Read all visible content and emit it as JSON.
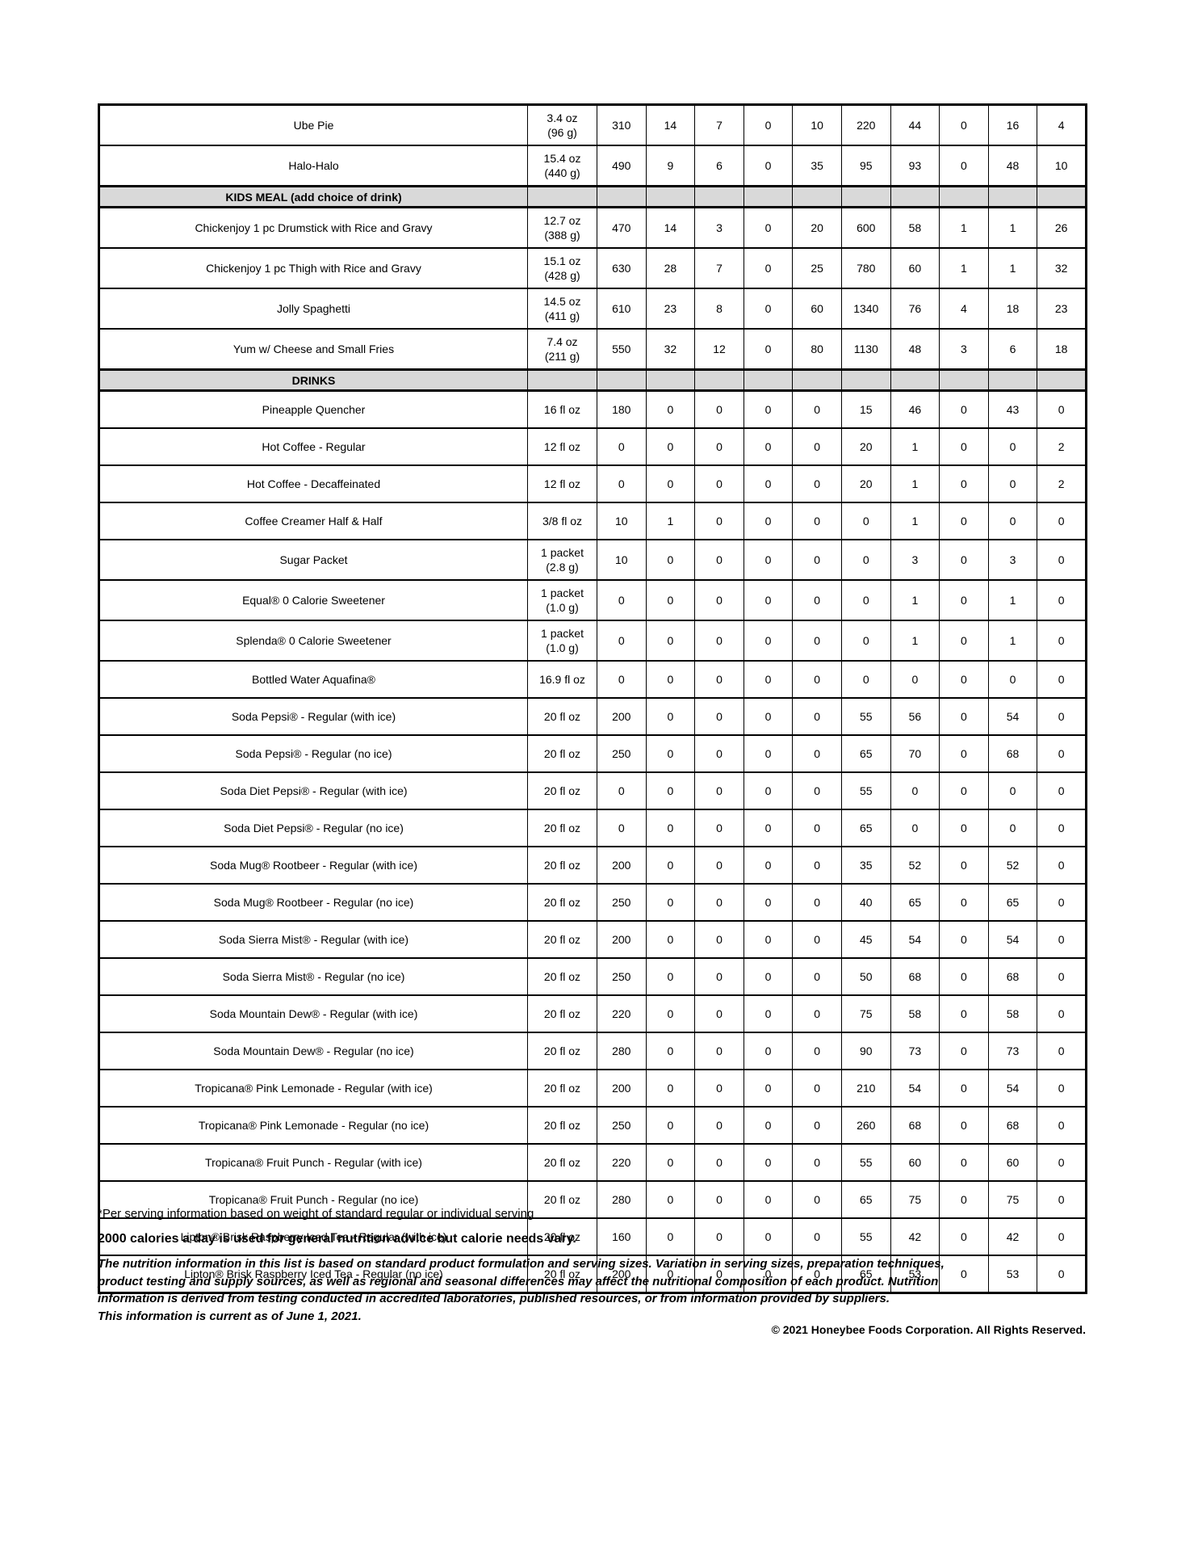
{
  "colors": {
    "section_bg": "#d9d9d9",
    "border": "#000000",
    "text": "#000000",
    "page_bg": "#ffffff"
  },
  "table": {
    "rows": [
      {
        "type": "item",
        "name": "Ube Pie",
        "serving": [
          "3.4 oz",
          "(96 g)"
        ],
        "values": [
          310,
          14,
          7,
          0,
          10,
          220,
          44,
          0,
          16,
          4
        ]
      },
      {
        "type": "item",
        "name": "Halo-Halo",
        "serving": [
          "15.4 oz",
          "(440 g)"
        ],
        "values": [
          490,
          9,
          6,
          0,
          35,
          95,
          93,
          0,
          48,
          10
        ]
      },
      {
        "type": "section",
        "name": "KIDS MEAL (add choice of drink)"
      },
      {
        "type": "item",
        "name": "Chickenjoy 1 pc Drumstick with Rice and Gravy",
        "serving": [
          "12.7 oz",
          "(388 g)"
        ],
        "values": [
          470,
          14,
          3,
          0,
          20,
          600,
          58,
          1,
          1,
          26
        ]
      },
      {
        "type": "item",
        "name": "Chickenjoy 1 pc Thigh with Rice and Gravy",
        "serving": [
          "15.1 oz",
          "(428 g)"
        ],
        "values": [
          630,
          28,
          7,
          0,
          25,
          780,
          60,
          1,
          1,
          32
        ]
      },
      {
        "type": "item",
        "name": "Jolly Spaghetti",
        "serving": [
          "14.5 oz",
          "(411 g)"
        ],
        "values": [
          610,
          23,
          8,
          0,
          60,
          1340,
          76,
          4,
          18,
          23
        ]
      },
      {
        "type": "item",
        "name": "Yum w/ Cheese and Small Fries",
        "serving": [
          "7.4 oz",
          "(211 g)"
        ],
        "values": [
          550,
          32,
          12,
          0,
          80,
          1130,
          48,
          3,
          6,
          18
        ]
      },
      {
        "type": "section",
        "name": "DRINKS"
      },
      {
        "type": "item",
        "name": "Pineapple Quencher",
        "serving": [
          "16 fl oz"
        ],
        "values": [
          180,
          0,
          0,
          0,
          0,
          15,
          46,
          0,
          43,
          0
        ]
      },
      {
        "type": "item",
        "name": "Hot Coffee - Regular",
        "serving": [
          "12 fl oz"
        ],
        "values": [
          0,
          0,
          0,
          0,
          0,
          20,
          1,
          0,
          0,
          2
        ]
      },
      {
        "type": "item",
        "name": "Hot Coffee - Decaffeinated",
        "serving": [
          "12 fl oz"
        ],
        "values": [
          0,
          0,
          0,
          0,
          0,
          20,
          1,
          0,
          0,
          2
        ]
      },
      {
        "type": "item",
        "name": "Coffee Creamer Half & Half",
        "serving": [
          "3/8 fl oz"
        ],
        "values": [
          10,
          1,
          0,
          0,
          0,
          0,
          1,
          0,
          0,
          0
        ]
      },
      {
        "type": "item",
        "name": "Sugar Packet",
        "serving": [
          "1 packet",
          "(2.8 g)"
        ],
        "values": [
          10,
          0,
          0,
          0,
          0,
          0,
          3,
          0,
          3,
          0
        ]
      },
      {
        "type": "item",
        "name": "Equal® 0 Calorie Sweetener",
        "serving": [
          "1 packet",
          "(1.0 g)"
        ],
        "values": [
          0,
          0,
          0,
          0,
          0,
          0,
          1,
          0,
          1,
          0
        ]
      },
      {
        "type": "item",
        "name": "Splenda® 0 Calorie Sweetener",
        "serving": [
          "1 packet",
          "(1.0 g)"
        ],
        "values": [
          0,
          0,
          0,
          0,
          0,
          0,
          1,
          0,
          1,
          0
        ]
      },
      {
        "type": "item",
        "name": "Bottled Water Aquafina®",
        "serving": [
          "16.9 fl oz"
        ],
        "values": [
          0,
          0,
          0,
          0,
          0,
          0,
          0,
          0,
          0,
          0
        ]
      },
      {
        "type": "item",
        "name": "Soda Pepsi® - Regular (with ice)",
        "serving": [
          "20 fl oz"
        ],
        "values": [
          200,
          0,
          0,
          0,
          0,
          55,
          56,
          0,
          54,
          0
        ]
      },
      {
        "type": "item",
        "name": "Soda Pepsi® - Regular (no ice)",
        "serving": [
          "20 fl oz"
        ],
        "values": [
          250,
          0,
          0,
          0,
          0,
          65,
          70,
          0,
          68,
          0
        ]
      },
      {
        "type": "item",
        "name": "Soda Diet Pepsi® - Regular (with ice)",
        "serving": [
          "20 fl oz"
        ],
        "values": [
          0,
          0,
          0,
          0,
          0,
          55,
          0,
          0,
          0,
          0
        ]
      },
      {
        "type": "item",
        "name": "Soda Diet Pepsi® - Regular (no ice)",
        "serving": [
          "20 fl oz"
        ],
        "values": [
          0,
          0,
          0,
          0,
          0,
          65,
          0,
          0,
          0,
          0
        ]
      },
      {
        "type": "item",
        "name": "Soda Mug® Rootbeer - Regular (with ice)",
        "serving": [
          "20 fl oz"
        ],
        "values": [
          200,
          0,
          0,
          0,
          0,
          35,
          52,
          0,
          52,
          0
        ]
      },
      {
        "type": "item",
        "name": "Soda Mug® Rootbeer - Regular (no ice)",
        "serving": [
          "20 fl oz"
        ],
        "values": [
          250,
          0,
          0,
          0,
          0,
          40,
          65,
          0,
          65,
          0
        ]
      },
      {
        "type": "item",
        "name": "Soda Sierra Mist® - Regular (with ice)",
        "serving": [
          "20 fl oz"
        ],
        "values": [
          200,
          0,
          0,
          0,
          0,
          45,
          54,
          0,
          54,
          0
        ]
      },
      {
        "type": "item",
        "name": "Soda Sierra Mist® - Regular (no ice)",
        "serving": [
          "20 fl oz"
        ],
        "values": [
          250,
          0,
          0,
          0,
          0,
          50,
          68,
          0,
          68,
          0
        ]
      },
      {
        "type": "item",
        "name": "Soda Mountain Dew® - Regular (with ice)",
        "serving": [
          "20 fl oz"
        ],
        "values": [
          220,
          0,
          0,
          0,
          0,
          75,
          58,
          0,
          58,
          0
        ]
      },
      {
        "type": "item",
        "name": "Soda Mountain Dew® - Regular (no ice)",
        "serving": [
          "20 fl oz"
        ],
        "values": [
          280,
          0,
          0,
          0,
          0,
          90,
          73,
          0,
          73,
          0
        ]
      },
      {
        "type": "item",
        "name": "Tropicana® Pink Lemonade - Regular (with ice)",
        "serving": [
          "20 fl oz"
        ],
        "values": [
          200,
          0,
          0,
          0,
          0,
          210,
          54,
          0,
          54,
          0
        ]
      },
      {
        "type": "item",
        "name": "Tropicana® Pink Lemonade - Regular (no ice)",
        "serving": [
          "20 fl oz"
        ],
        "values": [
          250,
          0,
          0,
          0,
          0,
          260,
          68,
          0,
          68,
          0
        ]
      },
      {
        "type": "item",
        "name": "Tropicana® Fruit Punch - Regular (with ice)",
        "serving": [
          "20 fl oz"
        ],
        "values": [
          220,
          0,
          0,
          0,
          0,
          55,
          60,
          0,
          60,
          0
        ]
      },
      {
        "type": "item",
        "name": "Tropicana® Fruit Punch - Regular (no ice)",
        "serving": [
          "20 fl oz"
        ],
        "values": [
          280,
          0,
          0,
          0,
          0,
          65,
          75,
          0,
          75,
          0
        ]
      },
      {
        "type": "item",
        "name": "Lipton® Brisk Raspberry Iced Tea - Regular (with ice)",
        "serving": [
          "20 fl oz"
        ],
        "values": [
          160,
          0,
          0,
          0,
          0,
          55,
          42,
          0,
          42,
          0
        ]
      },
      {
        "type": "item",
        "name": "Lipton® Brisk Raspberry Iced Tea - Regular (no ice)",
        "serving": [
          "20 fl oz"
        ],
        "values": [
          200,
          0,
          0,
          0,
          0,
          65,
          53,
          0,
          53,
          0
        ]
      }
    ]
  },
  "footer": {
    "footnote": "*Per serving information based on weight of standard regular or individual serving",
    "advice": "2000 calories a day is used for general nutrition advice but calorie needs vary.",
    "disclaimer_lines": [
      "The nutrition information in this list is based on standard product formulation and serving sizes. Variation in serving sizes, preparation techniques,",
      "product testing and supply sources, as well as regional and seasonal differences may affect the nutritional composition of each product. Nutrition",
      "information is derived from testing conducted in accredited laboratories, published resources, or from information provided by suppliers.",
      "This information is current as of June 1, 2021."
    ],
    "copyright": "© 2021 Honeybee Foods Corporation. All Rights Reserved."
  }
}
